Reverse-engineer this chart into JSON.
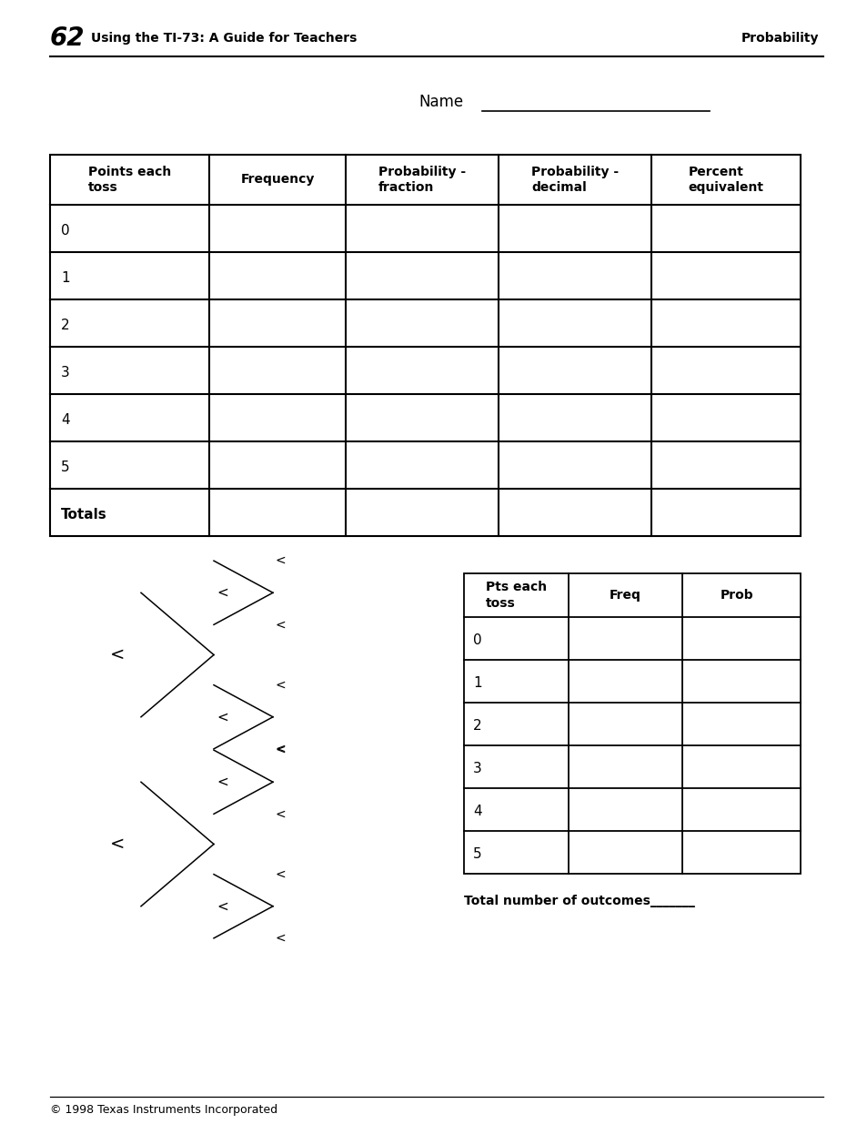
{
  "page_number": "62",
  "header_left": "Using the TI-73: A Guide for Teachers",
  "header_right": "Probability",
  "name_label": "Name",
  "table1_headers": [
    "Points each\ntoss",
    "Frequency",
    "Probability -\nfraction",
    "Probability -\ndecimal",
    "Percent\nequivalent"
  ],
  "table1_rows": [
    "0",
    "1",
    "2",
    "3",
    "4",
    "5",
    "Totals"
  ],
  "table2_headers": [
    "Pts each\ntoss",
    "Freq",
    "Prob"
  ],
  "table2_rows": [
    "0",
    "1",
    "2",
    "3",
    "4",
    "5"
  ],
  "total_outcomes_label": "Total number of outcomes_______",
  "footer": "© 1998 Texas Instruments Incorporated",
  "bg_color": "#ffffff",
  "text_color": "#000000"
}
